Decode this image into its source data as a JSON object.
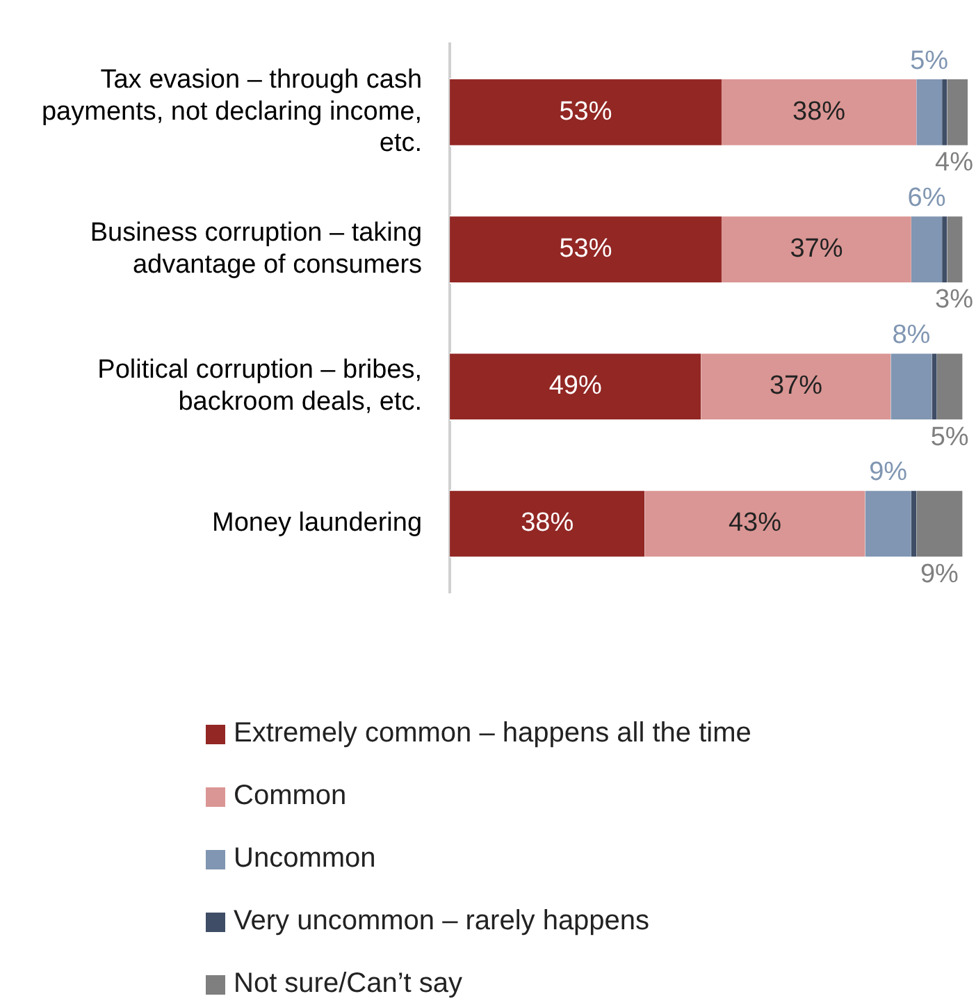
{
  "chart_data": {
    "type": "bar",
    "orientation": "horizontal",
    "stacked": true,
    "grid": false,
    "legend": "bottom",
    "tick_labels": "y",
    "categories": [
      "Tax evasion – through cash payments, not declaring income, etc.",
      "Business corruption – taking advantage of consumers",
      "Political corruption – bribes, backroom deals, etc.",
      "Money laundering"
    ],
    "series": [
      {
        "name": "Extremely common – happens all the time",
        "color": "#922724",
        "values": [
          53,
          53,
          49,
          38
        ],
        "value_labels": [
          "53%",
          "53%",
          "49%",
          "38%"
        ]
      },
      {
        "name": "Common",
        "color": "#da9694",
        "values": [
          38,
          37,
          37,
          43
        ],
        "value_labels": [
          "38%",
          "37%",
          "37%",
          "43%"
        ]
      },
      {
        "name": "Uncommon",
        "color": "#8096b2",
        "values": [
          5,
          6,
          8,
          9
        ],
        "value_labels": [
          "5%",
          "6%",
          "8%",
          "9%"
        ]
      },
      {
        "name": "Very uncommon – rarely happens",
        "color": "#3f4e66",
        "values": [
          1,
          1,
          1,
          1
        ],
        "value_labels": [
          null,
          null,
          null,
          null
        ]
      },
      {
        "name": "Not sure/Can’t say",
        "color": "#7f7f7f",
        "values": [
          4,
          3,
          5,
          9
        ],
        "value_labels": [
          "4%",
          "3%",
          "5%",
          "9%"
        ]
      }
    ]
  }
}
